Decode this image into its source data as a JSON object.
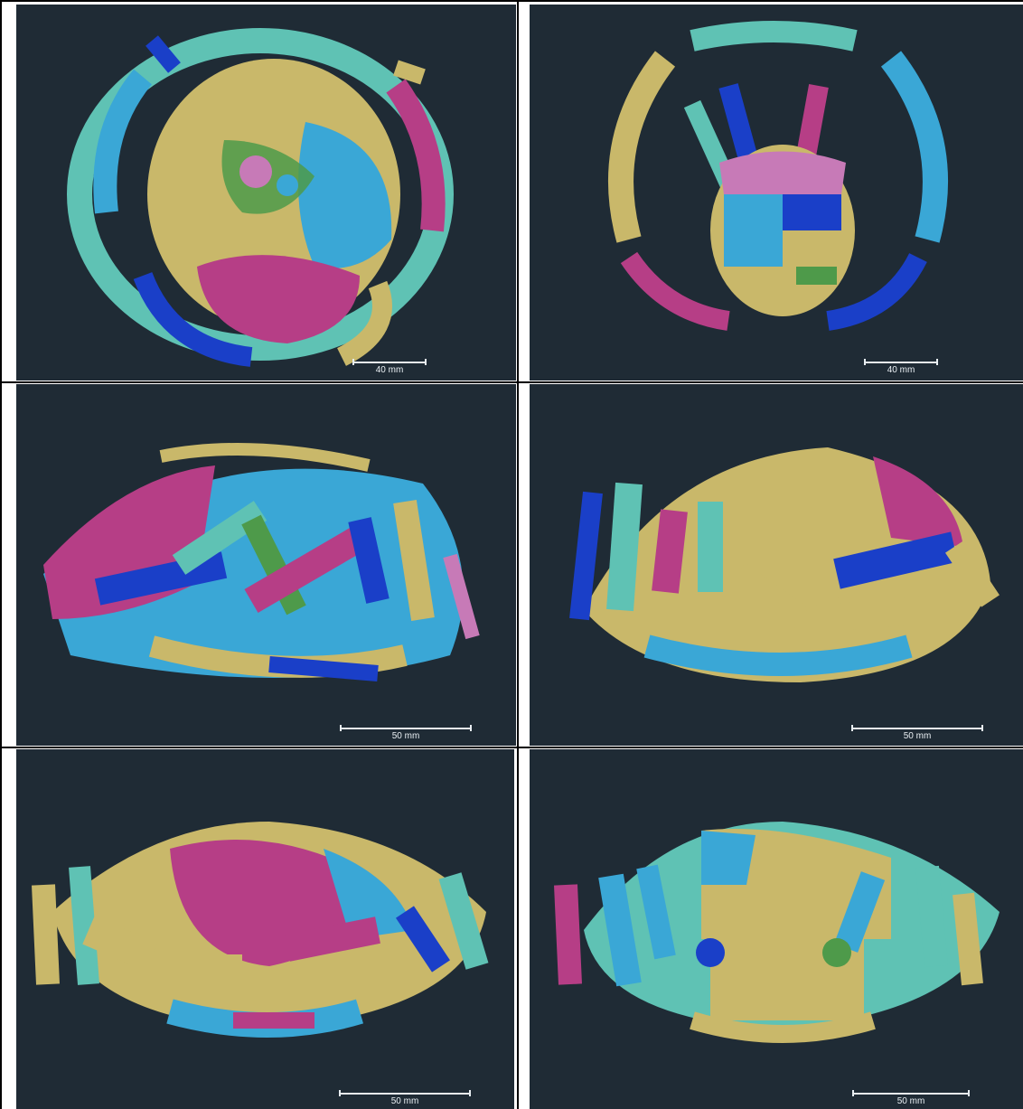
{
  "panels": [
    {
      "id": "top-left",
      "scale_label": "40 mm"
    },
    {
      "id": "top-right",
      "scale_label": "40 mm"
    },
    {
      "id": "middle-left",
      "scale_label": "50 mm"
    },
    {
      "id": "middle-right",
      "scale_label": "50 mm"
    },
    {
      "id": "bottom-left",
      "scale_label": "50 mm"
    },
    {
      "id": "bottom-right",
      "scale_label": "50 mm"
    }
  ],
  "colors": {
    "background": "#1f2b35",
    "tan": "#c9b86a",
    "sky": "#3aa7d6",
    "magenta": "#b63e86",
    "teal": "#5fc2b4",
    "navy": "#1a3fc8",
    "green": "#4e9a4a",
    "pink": "#c77ab7"
  }
}
